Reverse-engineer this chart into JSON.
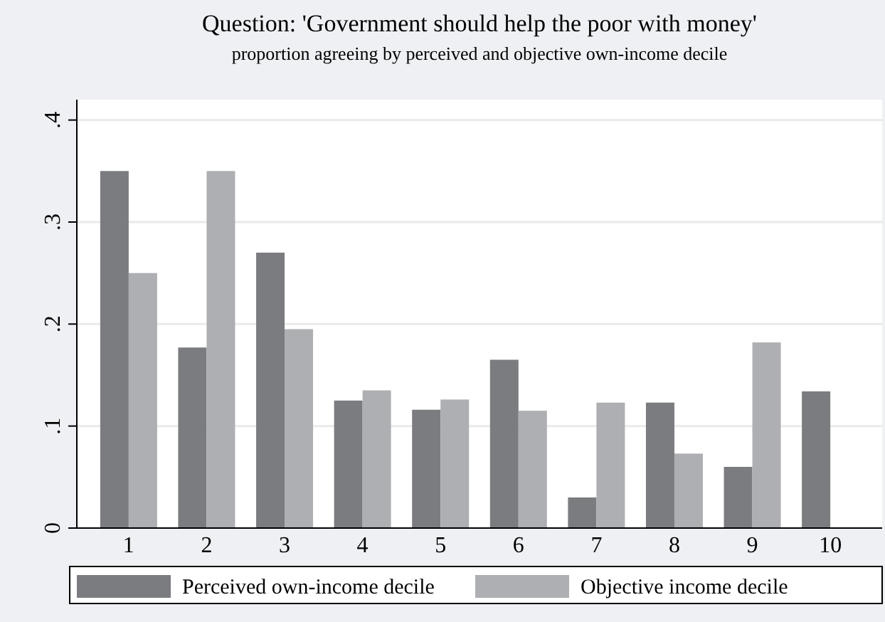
{
  "chart_data": {
    "type": "bar",
    "title": "Question: 'Government should help the poor with money'",
    "subtitle": "proportion agreeing by perceived and objective own-income decile",
    "categories": [
      "1",
      "2",
      "3",
      "4",
      "5",
      "6",
      "7",
      "8",
      "9",
      "10"
    ],
    "series": [
      {
        "name": "Perceived own-income decile",
        "color": "#7b7c80",
        "values": [
          0.35,
          0.177,
          0.27,
          0.125,
          0.116,
          0.165,
          0.03,
          0.123,
          0.06,
          0.134
        ]
      },
      {
        "name": "Objective income decile",
        "color": "#aeafb2",
        "values": [
          0.25,
          0.35,
          0.195,
          0.135,
          0.126,
          0.115,
          0.123,
          0.073,
          0.182,
          null
        ]
      }
    ],
    "ylim": [
      0,
      0.42
    ],
    "yticks": [
      0,
      {
        "value": 0.1,
        "label": ".1"
      },
      {
        "value": 0.2,
        "label": ".2"
      },
      {
        "value": 0.3,
        "label": ".3"
      },
      {
        "value": 0.4,
        "label": ".4"
      }
    ],
    "grid": "y",
    "legend": "bottom"
  }
}
